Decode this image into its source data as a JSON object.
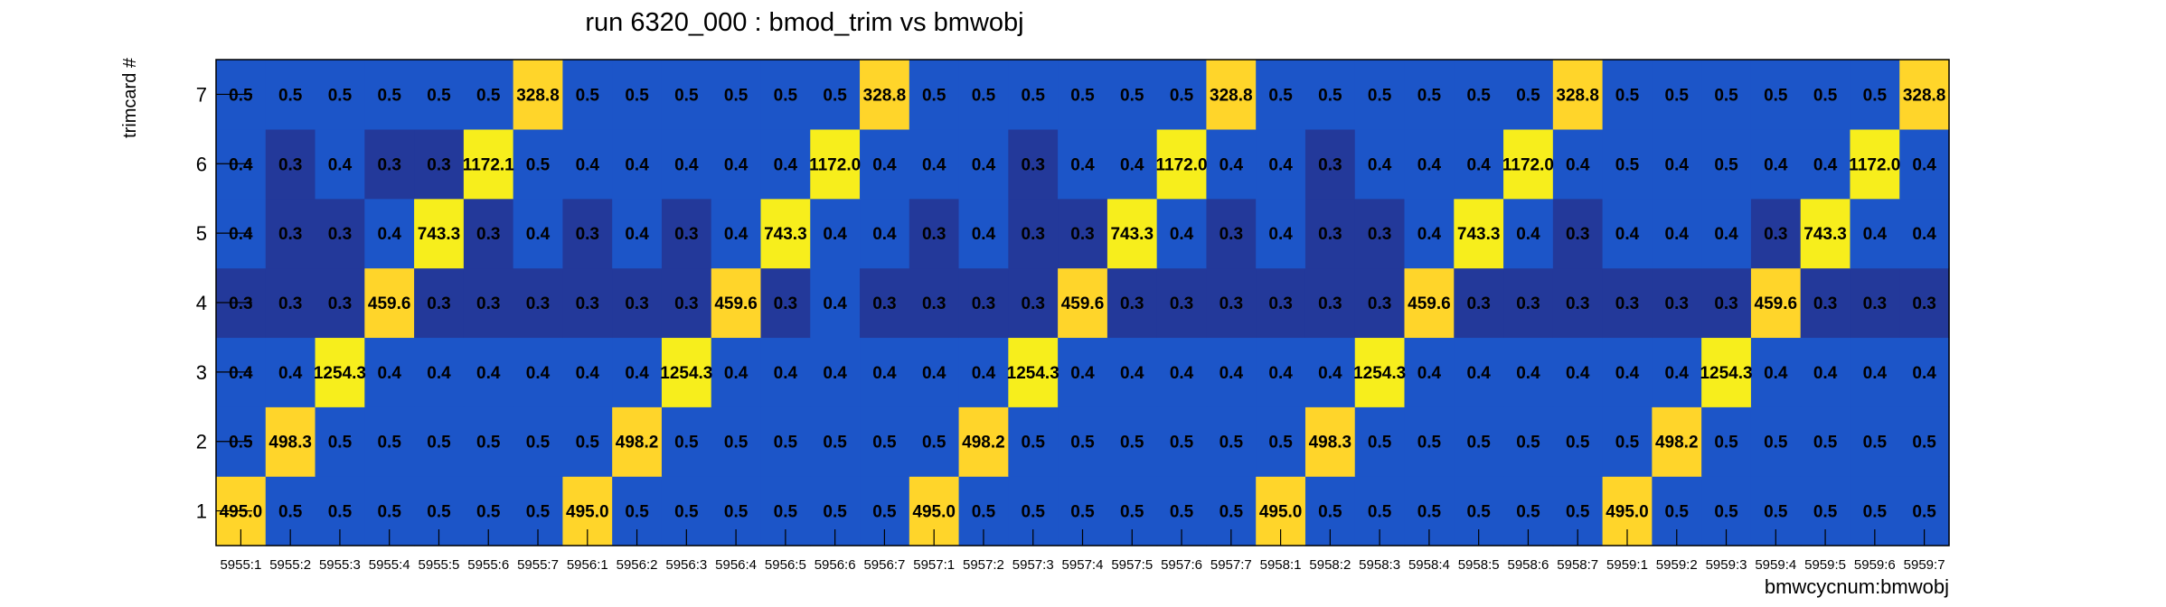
{
  "chart_data": {
    "type": "heatmap",
    "title": "run 6320_000 : bmod_trim vs bmwobj",
    "xlabel": "bmwcycnum:bmwobj",
    "ylabel": "trimcard #",
    "x_categories": [
      "5955:1",
      "5955:2",
      "5955:3",
      "5955:4",
      "5955:5",
      "5955:6",
      "5955:7",
      "5956:1",
      "5956:2",
      "5956:3",
      "5956:4",
      "5956:5",
      "5956:6",
      "5956:7",
      "5957:1",
      "5957:2",
      "5957:3",
      "5957:4",
      "5957:5",
      "5957:6",
      "5957:7",
      "5958:1",
      "5958:2",
      "5958:3",
      "5958:4",
      "5958:5",
      "5958:6",
      "5958:7",
      "5959:1",
      "5959:2",
      "5959:3",
      "5959:4",
      "5959:5",
      "5959:6",
      "5959:7"
    ],
    "y_categories": [
      "1",
      "2",
      "3",
      "4",
      "5",
      "6",
      "7"
    ],
    "values": [
      [
        "495.0",
        "0.5",
        "0.5",
        "0.5",
        "0.5",
        "0.5",
        "0.5",
        "495.0",
        "0.5",
        "0.5",
        "0.5",
        "0.5",
        "0.5",
        "0.5",
        "495.0",
        "0.5",
        "0.5",
        "0.5",
        "0.5",
        "0.5",
        "0.5",
        "495.0",
        "0.5",
        "0.5",
        "0.5",
        "0.5",
        "0.5",
        "0.5",
        "495.0",
        "0.5",
        "0.5",
        "0.5",
        "0.5",
        "0.5",
        "0.5"
      ],
      [
        "0.5",
        "498.3",
        "0.5",
        "0.5",
        "0.5",
        "0.5",
        "0.5",
        "0.5",
        "498.2",
        "0.5",
        "0.5",
        "0.5",
        "0.5",
        "0.5",
        "0.5",
        "498.2",
        "0.5",
        "0.5",
        "0.5",
        "0.5",
        "0.5",
        "0.5",
        "498.3",
        "0.5",
        "0.5",
        "0.5",
        "0.5",
        "0.5",
        "0.5",
        "498.2",
        "0.5",
        "0.5",
        "0.5",
        "0.5",
        "0.5"
      ],
      [
        "0.4",
        "0.4",
        "1254.3",
        "0.4",
        "0.4",
        "0.4",
        "0.4",
        "0.4",
        "0.4",
        "1254.3",
        "0.4",
        "0.4",
        "0.4",
        "0.4",
        "0.4",
        "0.4",
        "1254.3",
        "0.4",
        "0.4",
        "0.4",
        "0.4",
        "0.4",
        "0.4",
        "1254.3",
        "0.4",
        "0.4",
        "0.4",
        "0.4",
        "0.4",
        "0.4",
        "1254.3",
        "0.4",
        "0.4",
        "0.4",
        "0.4"
      ],
      [
        "0.3",
        "0.3",
        "0.3",
        "459.6",
        "0.3",
        "0.3",
        "0.3",
        "0.3",
        "0.3",
        "0.3",
        "459.6",
        "0.3",
        "0.4",
        "0.3",
        "0.3",
        "0.3",
        "0.3",
        "459.6",
        "0.3",
        "0.3",
        "0.3",
        "0.3",
        "0.3",
        "0.3",
        "459.6",
        "0.3",
        "0.3",
        "0.3",
        "0.3",
        "0.3",
        "0.3",
        "459.6",
        "0.3",
        "0.3",
        "0.3"
      ],
      [
        "0.4",
        "0.3",
        "0.3",
        "0.4",
        "743.3",
        "0.3",
        "0.4",
        "0.3",
        "0.4",
        "0.3",
        "0.4",
        "743.3",
        "0.4",
        "0.4",
        "0.3",
        "0.4",
        "0.3",
        "0.3",
        "743.3",
        "0.4",
        "0.3",
        "0.4",
        "0.3",
        "0.3",
        "0.4",
        "743.3",
        "0.4",
        "0.3",
        "0.4",
        "0.4",
        "0.4",
        "0.3",
        "743.3",
        "0.4",
        "0.4"
      ],
      [
        "0.4",
        "0.3",
        "0.4",
        "0.3",
        "0.3",
        "1172.1",
        "0.5",
        "0.4",
        "0.4",
        "0.4",
        "0.4",
        "0.4",
        "1172.0",
        "0.4",
        "0.4",
        "0.4",
        "0.3",
        "0.4",
        "0.4",
        "1172.0",
        "0.4",
        "0.4",
        "0.3",
        "0.4",
        "0.4",
        "0.4",
        "1172.0",
        "0.4",
        "0.5",
        "0.4",
        "0.5",
        "0.4",
        "0.4",
        "1172.0",
        "0.4"
      ],
      [
        "0.5",
        "0.5",
        "0.5",
        "0.5",
        "0.5",
        "0.5",
        "328.8",
        "0.5",
        "0.5",
        "0.5",
        "0.5",
        "0.5",
        "0.5",
        "328.8",
        "0.5",
        "0.5",
        "0.5",
        "0.5",
        "0.5",
        "0.5",
        "328.8",
        "0.5",
        "0.5",
        "0.5",
        "0.5",
        "0.5",
        "0.5",
        "328.8",
        "0.5",
        "0.5",
        "0.5",
        "0.5",
        "0.5",
        "0.5",
        "328.8"
      ]
    ],
    "colors": {
      "background": "#ffffff",
      "cell_high": "#ffd52a",
      "cell_mid_high": "#f9c83a",
      "cell_blue": "#1c55c8",
      "cell_dark_blue": "#23399a",
      "cell_yellow": "#f7ee1c",
      "axis": "#000000"
    },
    "grid": false,
    "legend": "none"
  }
}
